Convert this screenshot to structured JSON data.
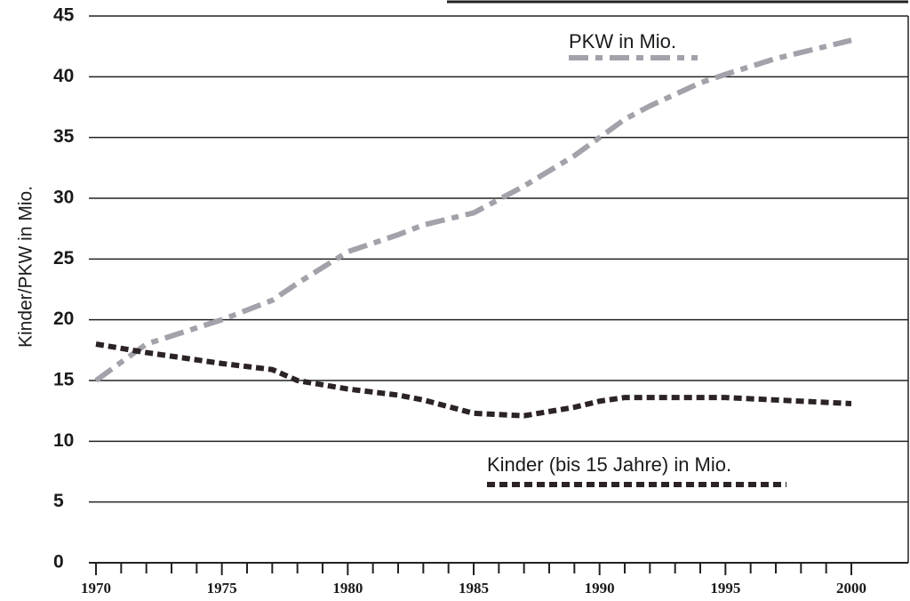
{
  "chart_data": {
    "type": "line",
    "y_label": "Kinder/PKW in Mio.",
    "x": [
      1970,
      1972,
      1975,
      1977,
      1978,
      1980,
      1982,
      1983,
      1985,
      1987,
      1989,
      1990,
      1991,
      1992,
      1994,
      1995,
      1997,
      2000
    ],
    "series": [
      {
        "name": "PKW in Mio.",
        "color": "#a3a1aa",
        "dash": "22 8 8 8",
        "values": [
          15,
          18,
          20,
          21.6,
          23,
          25.6,
          27,
          27.8,
          28.8,
          31,
          33.5,
          35,
          36.5,
          37.6,
          39.5,
          40.2,
          41.5,
          43
        ]
      },
      {
        "name": "Kinder (bis 15 Jahre) in Mio.",
        "color": "#2b2327",
        "dash": "9 5",
        "values": [
          18,
          17.3,
          16.4,
          15.9,
          15,
          14.3,
          13.8,
          13.4,
          12.3,
          12.1,
          12.8,
          13.3,
          13.6,
          13.6,
          13.6,
          13.6,
          13.4,
          13.1
        ]
      }
    ],
    "xlim": [
      1970,
      2000
    ],
    "xticks": [
      1970,
      1975,
      1980,
      1985,
      1990,
      1995,
      2000
    ],
    "xminorticks": [
      1971,
      1972,
      1973,
      1974,
      1976,
      1977,
      1978,
      1979,
      1981,
      1982,
      1983,
      1984,
      1986,
      1987,
      1988,
      1989,
      1991,
      1992,
      1993,
      1994,
      1996,
      1997,
      1998,
      1999
    ],
    "ylim": [
      0,
      45
    ],
    "yticks": [
      0,
      5,
      10,
      15,
      20,
      25,
      30,
      35,
      40,
      45
    ],
    "grid": true
  }
}
